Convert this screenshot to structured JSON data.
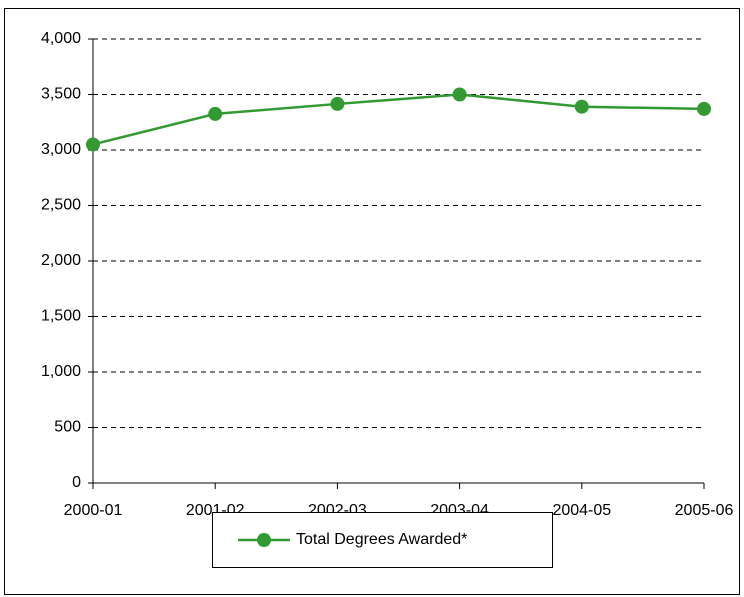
{
  "chart_data": {
    "type": "line",
    "categories": [
      "2000-01",
      "2001-02",
      "2002-03",
      "2003-04",
      "2004-05",
      "2005-06"
    ],
    "series": [
      {
        "name": "Total Degrees Awarded*",
        "color": "#339933",
        "values": [
          3050,
          3325,
          3415,
          3500,
          3390,
          3370
        ]
      }
    ],
    "ylim": [
      0,
      4000
    ],
    "yticks": [
      0,
      500,
      {
        "value": 1000,
        "label": "1,000"
      },
      {
        "value": 1500,
        "label": "1,500"
      },
      {
        "value": 2000,
        "label": "2,000"
      },
      {
        "value": 2500,
        "label": "2,500"
      },
      {
        "value": 3000,
        "label": "3,000"
      },
      {
        "value": 3500,
        "label": "3,500"
      },
      {
        "value": 4000,
        "label": "4,000"
      }
    ],
    "grid": true,
    "legend": "bottom"
  }
}
